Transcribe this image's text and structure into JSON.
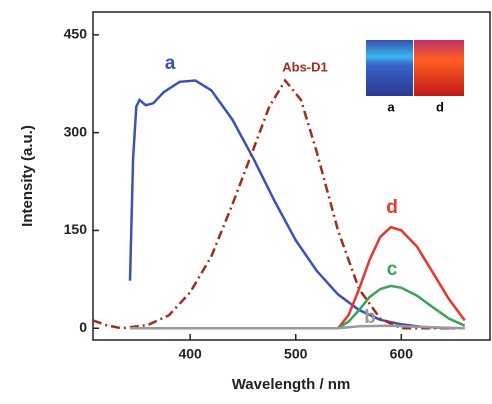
{
  "chart_data": {
    "type": "line",
    "xlabel": "Wavelength / nm",
    "ylabel": "Intensity (a.u.)",
    "xlim": [
      308,
      684
    ],
    "ylim": [
      -18,
      485
    ],
    "xticks": [
      400,
      500,
      600
    ],
    "yticks": [
      0,
      150,
      300,
      450
    ],
    "grid": false,
    "series": [
      {
        "name": "a",
        "color": "#3b52b4",
        "dash": "solid",
        "x": [
          343,
          346,
          349,
          352,
          358,
          365,
          375,
          390,
          405,
          420,
          440,
          460,
          480,
          500,
          520,
          540,
          560,
          580,
          600,
          620,
          650
        ],
        "values": [
          73,
          260,
          340,
          350,
          342,
          345,
          362,
          378,
          380,
          365,
          320,
          260,
          195,
          135,
          88,
          52,
          28,
          13,
          6,
          2,
          0
        ]
      },
      {
        "name": "Abs-D1",
        "color": "#a52a1e",
        "dash": "dashdot",
        "x": [
          308,
          320,
          335,
          360,
          380,
          400,
          420,
          440,
          460,
          475,
          490,
          505,
          520,
          540,
          560,
          580,
          600,
          630,
          660
        ],
        "values": [
          12,
          5,
          0,
          5,
          20,
          55,
          110,
          190,
          275,
          340,
          380,
          350,
          270,
          150,
          60,
          15,
          0,
          0,
          0
        ]
      },
      {
        "name": "d",
        "color": "#e8352d",
        "dash": "solid",
        "x": [
          540,
          550,
          560,
          570,
          580,
          590,
          600,
          615,
          630,
          645,
          660
        ],
        "values": [
          0,
          20,
          60,
          105,
          140,
          155,
          150,
          125,
          85,
          45,
          12
        ]
      },
      {
        "name": "c",
        "color": "#3aa35a",
        "dash": "solid",
        "x": [
          343,
          400,
          500,
          540,
          550,
          560,
          570,
          580,
          590,
          600,
          615,
          630,
          645,
          660
        ],
        "values": [
          0,
          0,
          0,
          0,
          10,
          28,
          48,
          60,
          65,
          62,
          50,
          32,
          15,
          4
        ]
      },
      {
        "name": "b",
        "color": "#9a9a9a",
        "dash": "solid",
        "x": [
          343,
          450,
          540,
          560,
          590,
          620,
          660
        ],
        "values": [
          0,
          0,
          0,
          3,
          4,
          2,
          0
        ]
      }
    ],
    "inset_labels": [
      "a",
      "d"
    ]
  }
}
